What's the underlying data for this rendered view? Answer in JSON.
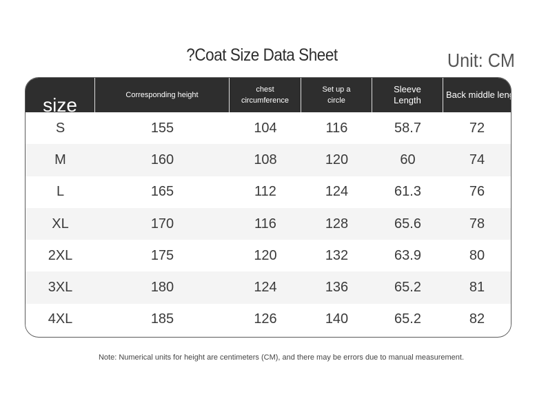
{
  "title": "?Coat Size Data Sheet",
  "unit": "Unit: CM",
  "table": {
    "headers": [
      "size",
      "Corresponding height",
      "chest\ncircumference",
      "Set up a\ncircle",
      "Sleeve\nLength",
      "Back middle length"
    ],
    "rows": [
      [
        "S",
        "155",
        "104",
        "116",
        "58.7",
        "72"
      ],
      [
        "M",
        "160",
        "108",
        "120",
        "60",
        "74"
      ],
      [
        "L",
        "165",
        "112",
        "124",
        "61.3",
        "76"
      ],
      [
        "XL",
        "170",
        "116",
        "128",
        "65.6",
        "78"
      ],
      [
        "2XL",
        "175",
        "120",
        "132",
        "63.9",
        "80"
      ],
      [
        "3XL",
        "180",
        "124",
        "136",
        "65.2",
        "81"
      ],
      [
        "4XL",
        "185",
        "126",
        "140",
        "65.2",
        "82"
      ]
    ]
  },
  "note": "Note: Numerical units for height are centimeters (CM), and there may be errors due to manual measurement.",
  "colors": {
    "header_bg": "#2e2e2e",
    "header_text": "#ffffff",
    "row_alt": "#f4f4f4"
  }
}
